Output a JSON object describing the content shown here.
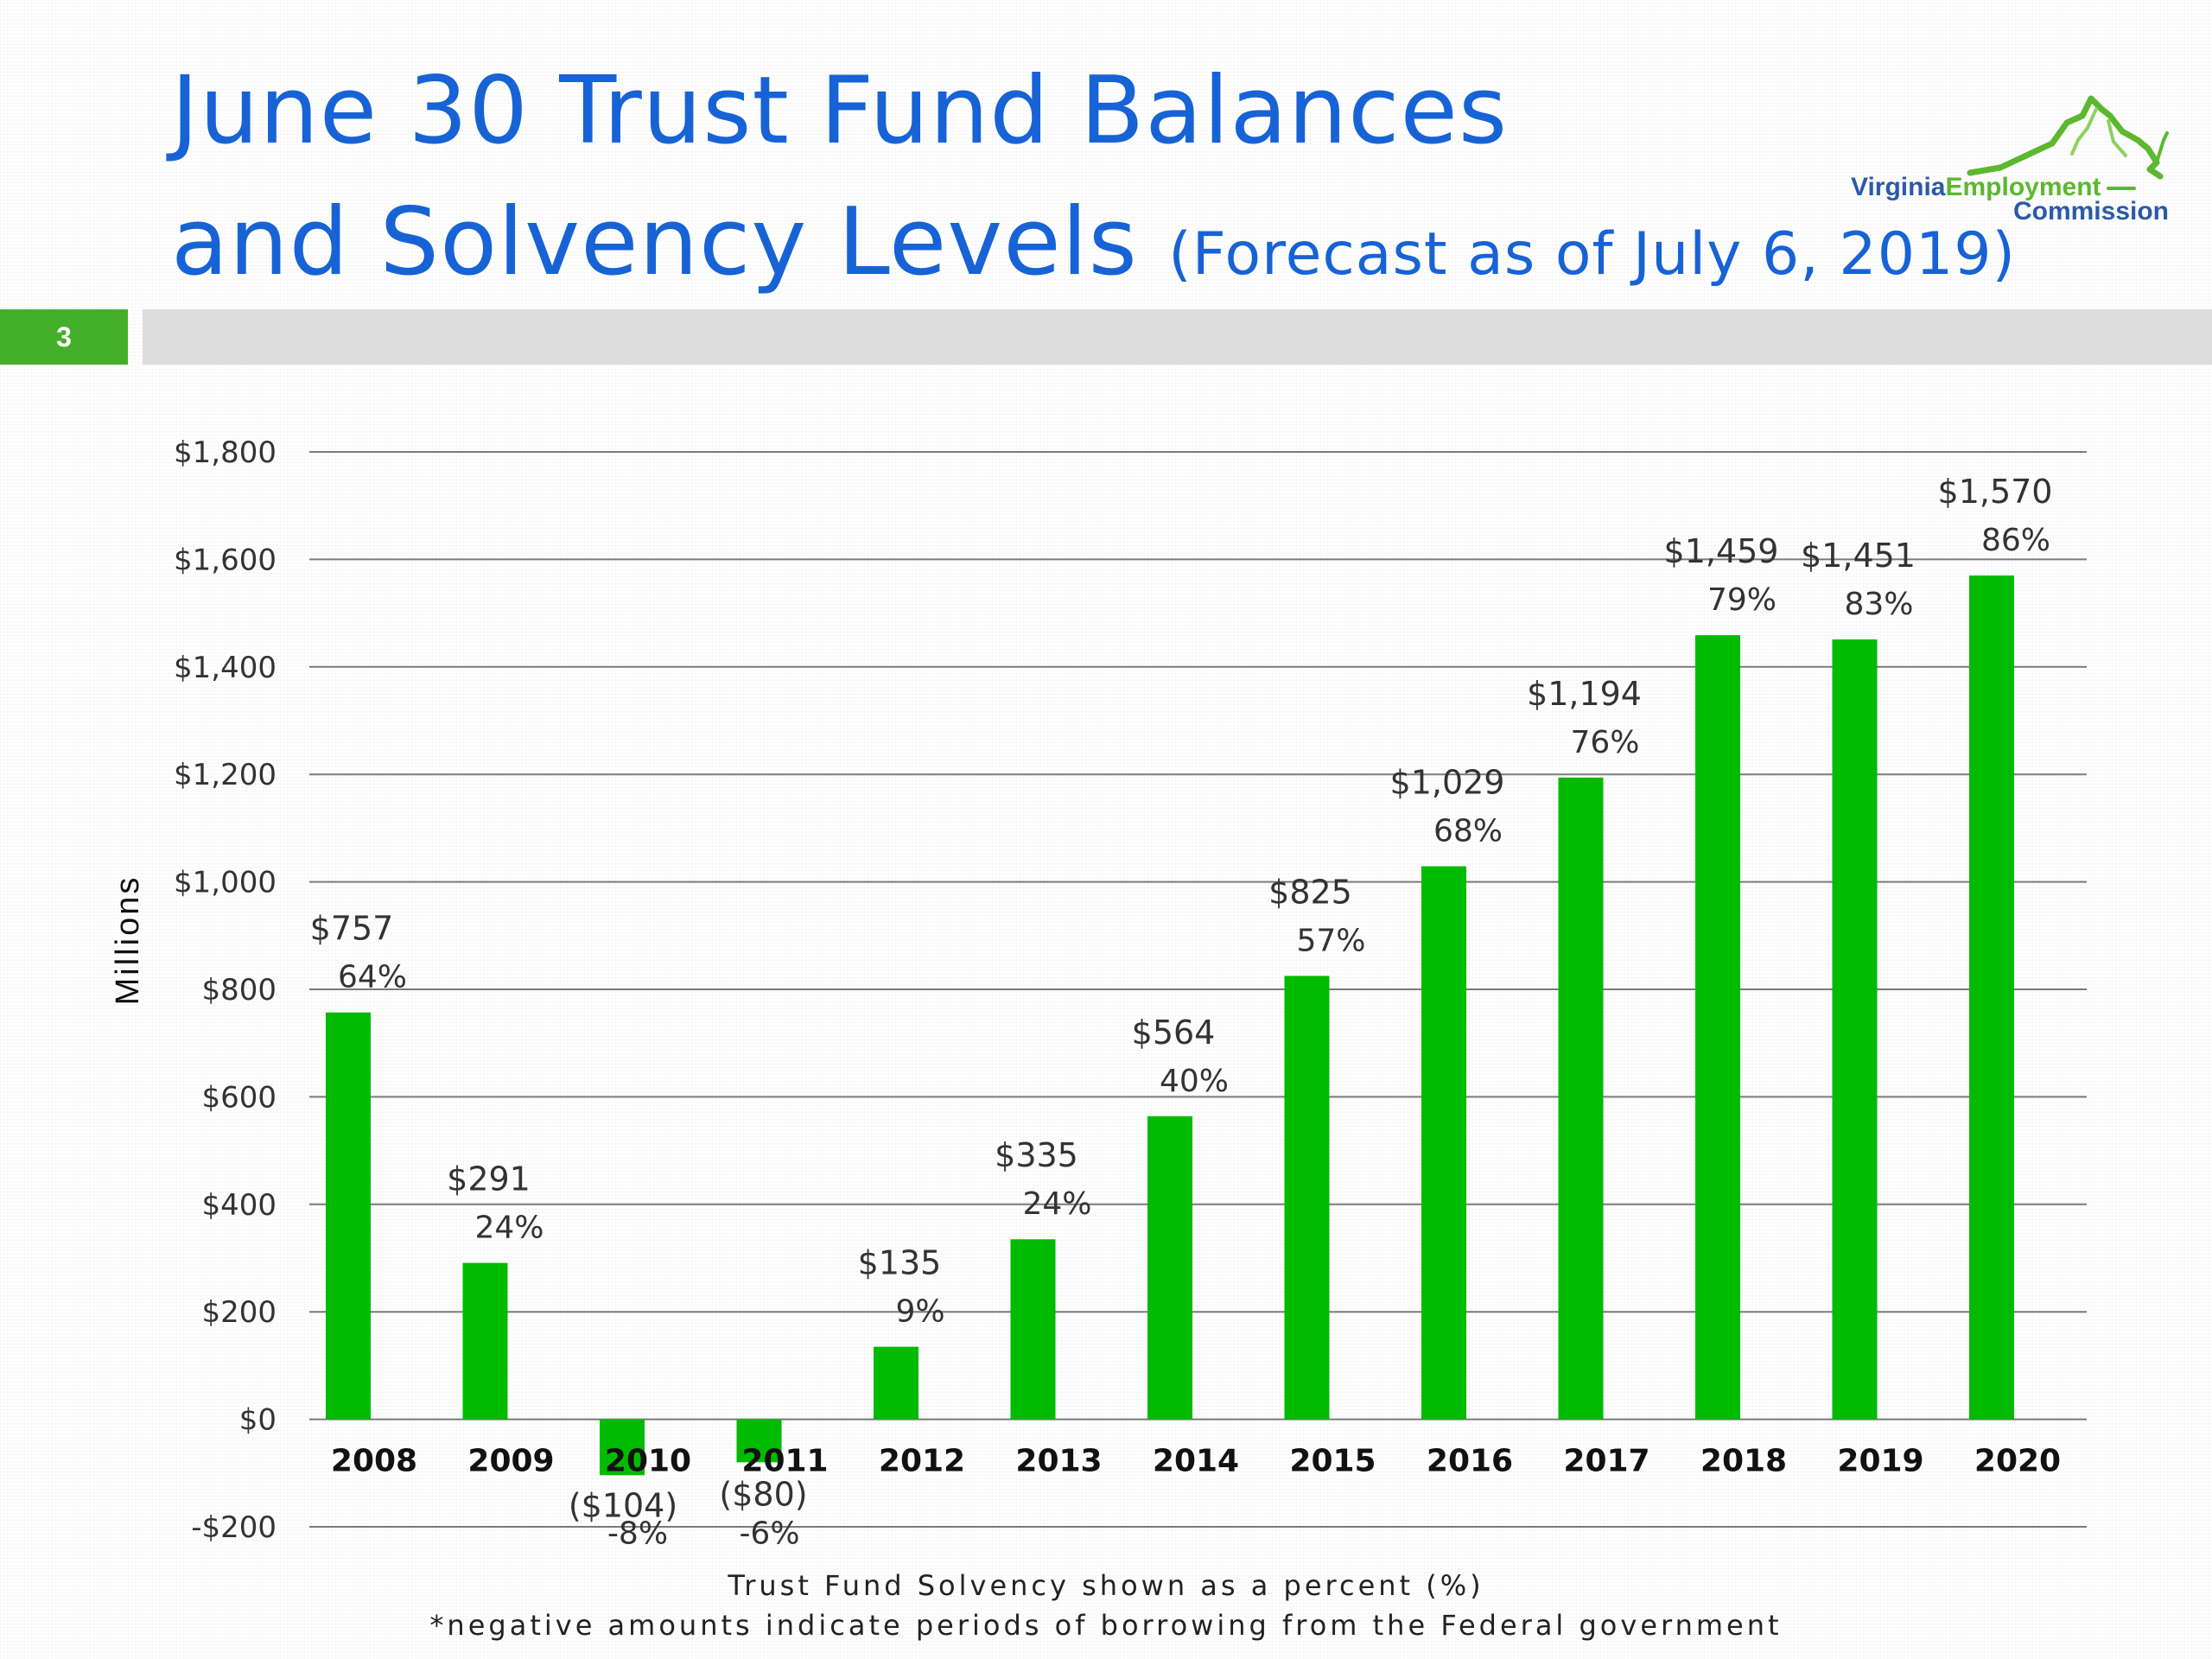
{
  "title_line1": "June 30 Trust Fund Balances",
  "title_line2_main": "and Solvency Levels",
  "title_line2_sub": "(Forecast as of July 6, 2019)",
  "logo": {
    "word1": "Virginia",
    "word2": "Employment",
    "word3": "Commission"
  },
  "slide_number": "3",
  "colors": {
    "title": "#1763d6",
    "bar": "#00bb00",
    "accent_green": "#44b02a"
  },
  "footnote_line1": "Trust Fund Solvency shown as a percent (%)",
  "footnote_line2": "*negative amounts indicate periods of borrowing from the Federal government",
  "chart_data": {
    "type": "bar",
    "ylabel": "Millions",
    "ylim": [
      -200,
      1800
    ],
    "grid": true,
    "y_ticks": [
      {
        "value": 1800,
        "label": "$1,800"
      },
      {
        "value": 1600,
        "label": "$1,600"
      },
      {
        "value": 1400,
        "label": "$1,400"
      },
      {
        "value": 1200,
        "label": "$1,200"
      },
      {
        "value": 1000,
        "label": "$1,000"
      },
      {
        "value": 800,
        "label": "$800"
      },
      {
        "value": 600,
        "label": "$600"
      },
      {
        "value": 400,
        "label": "$400"
      },
      {
        "value": 200,
        "label": "$200"
      },
      {
        "value": 0,
        "label": "$0"
      },
      {
        "value": -200,
        "label": "-$200"
      }
    ],
    "categories": [
      "2008",
      "2009",
      "2010",
      "2011",
      "2012",
      "2013",
      "2014",
      "2015",
      "2016",
      "2017",
      "2018",
      "2019",
      "2020"
    ],
    "values": [
      757,
      291,
      -104,
      -80,
      135,
      335,
      564,
      825,
      1029,
      1194,
      1459,
      1451,
      1570
    ],
    "value_labels": [
      "$757",
      "$291",
      "($104)",
      "($80)",
      "$135",
      "$335",
      "$564",
      "$825",
      "$1,029",
      "$1,194",
      "$1,459",
      "$1,451",
      "$1,570"
    ],
    "solvency_labels": [
      "64%",
      "24%",
      "-8%",
      "-6%",
      "9%",
      "24%",
      "40%",
      "57%",
      "68%",
      "76%",
      "79%",
      "83%",
      "86%"
    ]
  }
}
